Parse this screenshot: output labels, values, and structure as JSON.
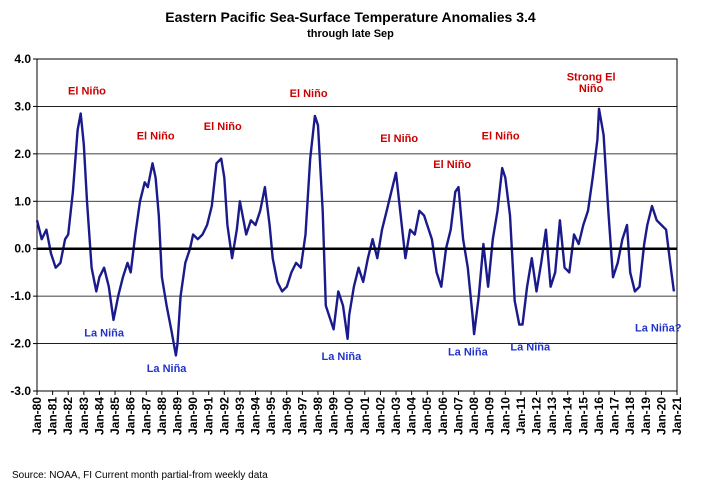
{
  "chart_data": {
    "type": "line",
    "title": "Eastern Pacific Sea-Surface Temperature Anomalies 3.4",
    "subtitle": "through late Sep",
    "footer": "Source: NOAA, FI     Current month partial-from weekly data",
    "ylim": [
      -3.0,
      4.0
    ],
    "yticks": [
      "4.0",
      "3.0",
      "2.0",
      "1.0",
      "0.0",
      "-1.0",
      "-2.0",
      "-3.0"
    ],
    "xlim": [
      1980.0,
      2021.0
    ],
    "xticks": [
      "Jan-80",
      "Jan-81",
      "Jan-82",
      "Jan-83",
      "Jan-84",
      "Jan-85",
      "Jan-86",
      "Jan-87",
      "Jan-88",
      "Jan-89",
      "Jan-90",
      "Jan-91",
      "Jan-92",
      "Jan-93",
      "Jan-94",
      "Jan-95",
      "Jan-96",
      "Jan-97",
      "Jan-98",
      "Jan-99",
      "Jan-00",
      "Jan-01",
      "Jan-02",
      "Jan-03",
      "Jan-04",
      "Jan-05",
      "Jan-06",
      "Jan-07",
      "Jan-08",
      "Jan-09",
      "Jan-10",
      "Jan-11",
      "Jan-12",
      "Jan-13",
      "Jan-14",
      "Jan-15",
      "Jan-16",
      "Jan-17",
      "Jan-18",
      "Jan-19",
      "Jan-20",
      "Jan-21"
    ],
    "grid": true,
    "line_color": "#1a1a8c",
    "zero_line_color": "#000000",
    "series": [
      {
        "x": [
          1980.0,
          1980.3,
          1980.6,
          1980.9,
          1981.2,
          1981.5,
          1981.8,
          1982.0,
          1982.3,
          1982.6,
          1982.8,
          1983.0,
          1983.2,
          1983.5,
          1983.8,
          1984.0,
          1984.3,
          1984.6,
          1984.9,
          1985.2,
          1985.5,
          1985.8,
          1986.0,
          1986.3,
          1986.6,
          1986.9,
          1987.1,
          1987.4,
          1987.6,
          1987.8,
          1988.0,
          1988.3,
          1988.6,
          1988.9,
          1989.0,
          1989.2,
          1989.5,
          1989.8,
          1990.0,
          1990.3,
          1990.6,
          1990.9,
          1991.2,
          1991.5,
          1991.8,
          1992.0,
          1992.2,
          1992.5,
          1992.8,
          1993.0,
          1993.4,
          1993.7,
          1994.0,
          1994.3,
          1994.6,
          1994.9,
          1995.1,
          1995.4,
          1995.7,
          1996.0,
          1996.3,
          1996.6,
          1996.9,
          1997.2,
          1997.5,
          1997.8,
          1998.0,
          1998.3,
          1998.5,
          1998.8,
          1999.0,
          1999.3,
          1999.6,
          1999.9,
          2000.0,
          2000.3,
          2000.6,
          2000.9,
          2001.2,
          2001.5,
          2001.8,
          2002.1,
          2002.4,
          2002.7,
          2003.0,
          2003.3,
          2003.6,
          2003.9,
          2004.2,
          2004.5,
          2004.8,
          2005.0,
          2005.3,
          2005.6,
          2005.9,
          2006.2,
          2006.5,
          2006.8,
          2007.0,
          2007.3,
          2007.6,
          2007.9,
          2008.0,
          2008.3,
          2008.6,
          2008.9,
          2009.2,
          2009.5,
          2009.8,
          2010.0,
          2010.3,
          2010.6,
          2010.9,
          2011.1,
          2011.4,
          2011.7,
          2012.0,
          2012.3,
          2012.6,
          2012.9,
          2013.2,
          2013.5,
          2013.8,
          2014.1,
          2014.4,
          2014.7,
          2015.0,
          2015.3,
          2015.6,
          2015.9,
          2016.0,
          2016.3,
          2016.6,
          2016.9,
          2017.2,
          2017.5,
          2017.8,
          2018.0,
          2018.3,
          2018.6,
          2018.9,
          2019.1,
          2019.4,
          2019.7,
          2020.0,
          2020.3,
          2020.6,
          2020.8
        ],
        "values": [
          0.6,
          0.2,
          0.4,
          -0.1,
          -0.4,
          -0.3,
          0.2,
          0.3,
          1.2,
          2.5,
          2.85,
          2.2,
          1.0,
          -0.4,
          -0.9,
          -0.6,
          -0.4,
          -0.8,
          -1.5,
          -1.0,
          -0.6,
          -0.3,
          -0.5,
          0.3,
          1.0,
          1.4,
          1.3,
          1.8,
          1.5,
          0.7,
          -0.6,
          -1.2,
          -1.7,
          -2.25,
          -2.0,
          -1.0,
          -0.3,
          0.0,
          0.3,
          0.2,
          0.3,
          0.5,
          0.9,
          1.8,
          1.9,
          1.5,
          0.5,
          -0.2,
          0.4,
          1.0,
          0.3,
          0.6,
          0.5,
          0.8,
          1.3,
          0.5,
          -0.2,
          -0.7,
          -0.9,
          -0.8,
          -0.5,
          -0.3,
          -0.4,
          0.3,
          1.9,
          2.8,
          2.6,
          0.8,
          -1.2,
          -1.5,
          -1.7,
          -0.9,
          -1.2,
          -1.9,
          -1.4,
          -0.8,
          -0.4,
          -0.7,
          -0.2,
          0.2,
          -0.2,
          0.4,
          0.8,
          1.2,
          1.6,
          0.7,
          -0.2,
          0.4,
          0.3,
          0.8,
          0.7,
          0.5,
          0.2,
          -0.5,
          -0.8,
          0.0,
          0.4,
          1.2,
          1.3,
          0.2,
          -0.4,
          -1.4,
          -1.8,
          -1.0,
          0.1,
          -0.8,
          0.2,
          0.8,
          1.7,
          1.5,
          0.7,
          -1.1,
          -1.6,
          -1.6,
          -0.8,
          -0.2,
          -0.9,
          -0.3,
          0.4,
          -0.8,
          -0.5,
          0.6,
          -0.4,
          -0.5,
          0.3,
          0.1,
          0.5,
          0.8,
          1.5,
          2.3,
          2.95,
          2.4,
          0.8,
          -0.6,
          -0.3,
          0.2,
          0.5,
          -0.5,
          -0.9,
          -0.8,
          0.1,
          0.5,
          0.9,
          0.6,
          0.5,
          0.4,
          -0.4,
          -0.9
        ]
      }
    ],
    "annotations": [
      {
        "text": "El Niño",
        "x": 1983.2,
        "y": 3.25,
        "color": "#cc0000"
      },
      {
        "text": "El Niño",
        "x": 1987.6,
        "y": 2.3,
        "color": "#cc0000"
      },
      {
        "text": "El Niño",
        "x": 1991.9,
        "y": 2.5,
        "color": "#cc0000"
      },
      {
        "text": "El Niño",
        "x": 1997.4,
        "y": 3.2,
        "color": "#cc0000"
      },
      {
        "text": "El Niño",
        "x": 2003.2,
        "y": 2.25,
        "color": "#cc0000"
      },
      {
        "text": "El Niño",
        "x": 2006.6,
        "y": 1.7,
        "color": "#cc0000"
      },
      {
        "text": "El Niño",
        "x": 2009.7,
        "y": 2.3,
        "color": "#cc0000"
      },
      {
        "text": "Strong El",
        "x": 2015.5,
        "y": 3.55,
        "color": "#cc0000"
      },
      {
        "text": "Niño",
        "x": 2015.5,
        "y": 3.3,
        "color": "#cc0000"
      },
      {
        "text": "La Niña",
        "x": 1984.3,
        "y": -1.85,
        "color": "#2233cc"
      },
      {
        "text": "La Niña",
        "x": 1988.3,
        "y": -2.6,
        "color": "#2233cc"
      },
      {
        "text": "La Niña",
        "x": 1999.5,
        "y": -2.35,
        "color": "#2233cc"
      },
      {
        "text": "La Niña",
        "x": 2007.6,
        "y": -2.25,
        "color": "#2233cc"
      },
      {
        "text": "La Niña",
        "x": 2011.6,
        "y": -2.15,
        "color": "#2233cc"
      },
      {
        "text": "La Niña?",
        "x": 2019.8,
        "y": -1.75,
        "color": "#2233cc"
      }
    ]
  }
}
